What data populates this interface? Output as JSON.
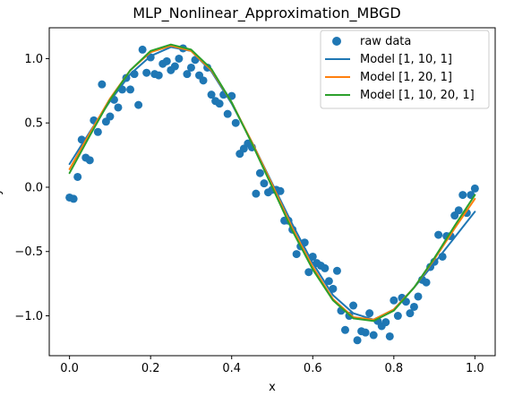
{
  "chart_data": {
    "type": "scatter",
    "title": "MLP_Nonlinear_Approximation_MBGD",
    "xlabel": "x",
    "ylabel": "y",
    "xlim": [
      -0.05,
      1.05
    ],
    "ylim": [
      -1.31,
      1.24
    ],
    "x_ticks": [
      0.0,
      0.2,
      0.4,
      0.6,
      0.8,
      1.0
    ],
    "x_tick_labels": [
      "0.0",
      "0.2",
      "0.4",
      "0.6",
      "0.8",
      "1.0"
    ],
    "y_ticks": [
      -1.0,
      -0.5,
      0.0,
      0.5,
      1.0
    ],
    "y_tick_labels": [
      "−1.0",
      "−0.5",
      "0.0",
      "0.5",
      "1.0"
    ],
    "grid": false,
    "legend_position": "top-right",
    "scatter": {
      "name": "raw data",
      "color": "#1f77b4",
      "points": [
        [
          0.0,
          -0.08
        ],
        [
          0.01,
          -0.09
        ],
        [
          0.02,
          0.08
        ],
        [
          0.03,
          0.37
        ],
        [
          0.04,
          0.23
        ],
        [
          0.05,
          0.21
        ],
        [
          0.06,
          0.52
        ],
        [
          0.07,
          0.43
        ],
        [
          0.08,
          0.8
        ],
        [
          0.09,
          0.51
        ],
        [
          0.1,
          0.55
        ],
        [
          0.11,
          0.68
        ],
        [
          0.12,
          0.62
        ],
        [
          0.13,
          0.76
        ],
        [
          0.14,
          0.85
        ],
        [
          0.15,
          0.76
        ],
        [
          0.16,
          0.88
        ],
        [
          0.17,
          0.64
        ],
        [
          0.18,
          1.07
        ],
        [
          0.19,
          0.89
        ],
        [
          0.2,
          1.01
        ],
        [
          0.21,
          0.88
        ],
        [
          0.22,
          0.87
        ],
        [
          0.23,
          0.96
        ],
        [
          0.24,
          0.98
        ],
        [
          0.25,
          0.91
        ],
        [
          0.26,
          0.94
        ],
        [
          0.27,
          1.0
        ],
        [
          0.28,
          1.08
        ],
        [
          0.29,
          0.88
        ],
        [
          0.3,
          0.93
        ],
        [
          0.31,
          0.99
        ],
        [
          0.32,
          0.87
        ],
        [
          0.33,
          0.83
        ],
        [
          0.34,
          0.93
        ],
        [
          0.35,
          0.72
        ],
        [
          0.36,
          0.67
        ],
        [
          0.37,
          0.65
        ],
        [
          0.38,
          0.72
        ],
        [
          0.39,
          0.57
        ],
        [
          0.4,
          0.71
        ],
        [
          0.41,
          0.5
        ],
        [
          0.42,
          0.26
        ],
        [
          0.43,
          0.3
        ],
        [
          0.44,
          0.34
        ],
        [
          0.45,
          0.31
        ],
        [
          0.46,
          -0.05
        ],
        [
          0.47,
          0.11
        ],
        [
          0.48,
          0.03
        ],
        [
          0.49,
          -0.04
        ],
        [
          0.5,
          -0.02
        ],
        [
          0.51,
          -0.02
        ],
        [
          0.52,
          -0.03
        ],
        [
          0.53,
          -0.26
        ],
        [
          0.54,
          -0.26
        ],
        [
          0.55,
          -0.33
        ],
        [
          0.56,
          -0.52
        ],
        [
          0.57,
          -0.46
        ],
        [
          0.58,
          -0.43
        ],
        [
          0.59,
          -0.66
        ],
        [
          0.6,
          -0.54
        ],
        [
          0.61,
          -0.59
        ],
        [
          0.62,
          -0.61
        ],
        [
          0.63,
          -0.63
        ],
        [
          0.64,
          -0.73
        ],
        [
          0.65,
          -0.79
        ],
        [
          0.66,
          -0.65
        ],
        [
          0.67,
          -0.96
        ],
        [
          0.68,
          -1.11
        ],
        [
          0.69,
          -1.0
        ],
        [
          0.7,
          -0.92
        ],
        [
          0.71,
          -1.19
        ],
        [
          0.72,
          -1.12
        ],
        [
          0.73,
          -1.13
        ],
        [
          0.74,
          -0.98
        ],
        [
          0.75,
          -1.15
        ],
        [
          0.76,
          -1.04
        ],
        [
          0.77,
          -1.08
        ],
        [
          0.78,
          -1.05
        ],
        [
          0.79,
          -1.16
        ],
        [
          0.8,
          -0.88
        ],
        [
          0.81,
          -1.0
        ],
        [
          0.82,
          -0.86
        ],
        [
          0.83,
          -0.89
        ],
        [
          0.84,
          -0.98
        ],
        [
          0.85,
          -0.93
        ],
        [
          0.86,
          -0.85
        ],
        [
          0.87,
          -0.72
        ],
        [
          0.88,
          -0.74
        ],
        [
          0.89,
          -0.62
        ],
        [
          0.9,
          -0.58
        ],
        [
          0.91,
          -0.37
        ],
        [
          0.92,
          -0.54
        ],
        [
          0.93,
          -0.38
        ],
        [
          0.94,
          -0.38
        ],
        [
          0.95,
          -0.22
        ],
        [
          0.96,
          -0.18
        ],
        [
          0.97,
          -0.06
        ],
        [
          0.98,
          -0.2
        ],
        [
          0.99,
          -0.06
        ],
        [
          1.0,
          -0.01
        ]
      ]
    },
    "series": [
      {
        "name": "Model [1, 10, 1]",
        "color": "#1f77b4",
        "x": [
          0.0,
          0.05,
          0.1,
          0.15,
          0.2,
          0.25,
          0.3,
          0.35,
          0.4,
          0.45,
          0.5,
          0.55,
          0.6,
          0.65,
          0.7,
          0.75,
          0.8,
          0.85,
          0.9,
          0.95,
          1.0
        ],
        "y": [
          0.18,
          0.43,
          0.67,
          0.88,
          1.02,
          1.09,
          1.06,
          0.9,
          0.65,
          0.35,
          0.03,
          -0.29,
          -0.59,
          -0.84,
          -0.98,
          -1.03,
          -0.95,
          -0.78,
          -0.59,
          -0.39,
          -0.19
        ]
      },
      {
        "name": "Model [1, 20, 1]",
        "color": "#ff7f0e",
        "x": [
          0.0,
          0.05,
          0.1,
          0.15,
          0.2,
          0.25,
          0.3,
          0.35,
          0.4,
          0.45,
          0.5,
          0.55,
          0.6,
          0.65,
          0.7,
          0.75,
          0.8,
          0.85,
          0.9,
          0.95,
          1.0
        ],
        "y": [
          0.14,
          0.42,
          0.69,
          0.91,
          1.05,
          1.1,
          1.06,
          0.91,
          0.66,
          0.35,
          0.02,
          -0.32,
          -0.62,
          -0.87,
          -1.01,
          -1.03,
          -0.95,
          -0.78,
          -0.56,
          -0.32,
          -0.09
        ]
      },
      {
        "name": "Model [1, 10, 20, 1]",
        "color": "#2ca02c",
        "x": [
          0.0,
          0.05,
          0.1,
          0.15,
          0.2,
          0.25,
          0.3,
          0.35,
          0.4,
          0.45,
          0.5,
          0.55,
          0.6,
          0.65,
          0.7,
          0.75,
          0.8,
          0.85,
          0.9,
          0.95,
          1.0
        ],
        "y": [
          0.11,
          0.4,
          0.68,
          0.91,
          1.06,
          1.11,
          1.07,
          0.92,
          0.66,
          0.34,
          0.0,
          -0.34,
          -0.64,
          -0.88,
          -1.02,
          -1.04,
          -0.96,
          -0.78,
          -0.55,
          -0.3,
          -0.06
        ]
      }
    ]
  }
}
